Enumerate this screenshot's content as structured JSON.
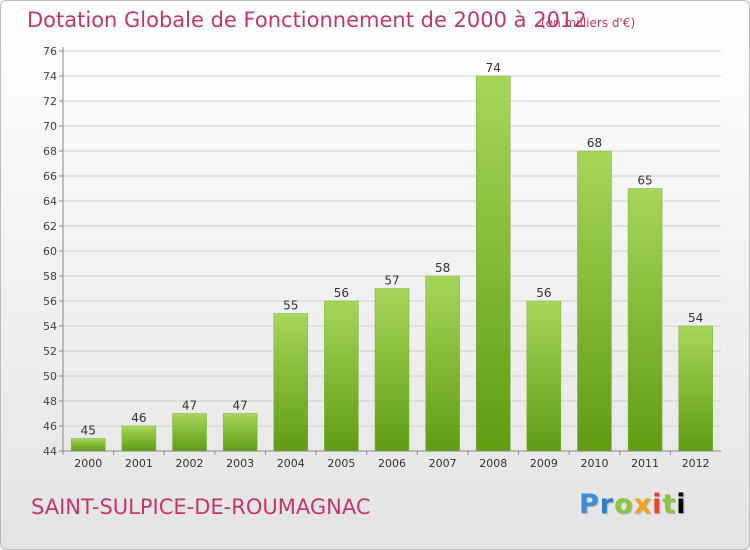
{
  "title": "Dotation Globale de Fonctionnement de 2000 à 2012",
  "subtitle": "(en milliers d'€)",
  "commune": "SAINT-SULPICE-DE-ROUMAGNAC",
  "logo": [
    "P",
    "r",
    "o",
    "x",
    "i",
    "t",
    "i"
  ],
  "colors": {
    "title": "#c4366b",
    "bar_top": "#a6d65a",
    "bar_bottom": "#5f9c12",
    "grid": "#d0d0d0"
  },
  "chart_data": {
    "type": "bar",
    "title": "Dotation Globale de Fonctionnement de 2000 à 2012",
    "subtitle": "(en milliers d'€)",
    "categories": [
      "2000",
      "2001",
      "2002",
      "2003",
      "2004",
      "2005",
      "2006",
      "2007",
      "2008",
      "2009",
      "2010",
      "2011",
      "2012"
    ],
    "values": [
      45,
      46,
      47,
      47,
      55,
      56,
      57,
      58,
      74,
      56,
      68,
      65,
      54
    ],
    "xlabel": "",
    "ylabel": "",
    "ylim": [
      44,
      76
    ],
    "yticks": [
      44,
      46,
      48,
      50,
      52,
      54,
      56,
      58,
      60,
      62,
      64,
      66,
      68,
      70,
      72,
      74,
      76
    ],
    "grid": true,
    "data_labels": true
  }
}
